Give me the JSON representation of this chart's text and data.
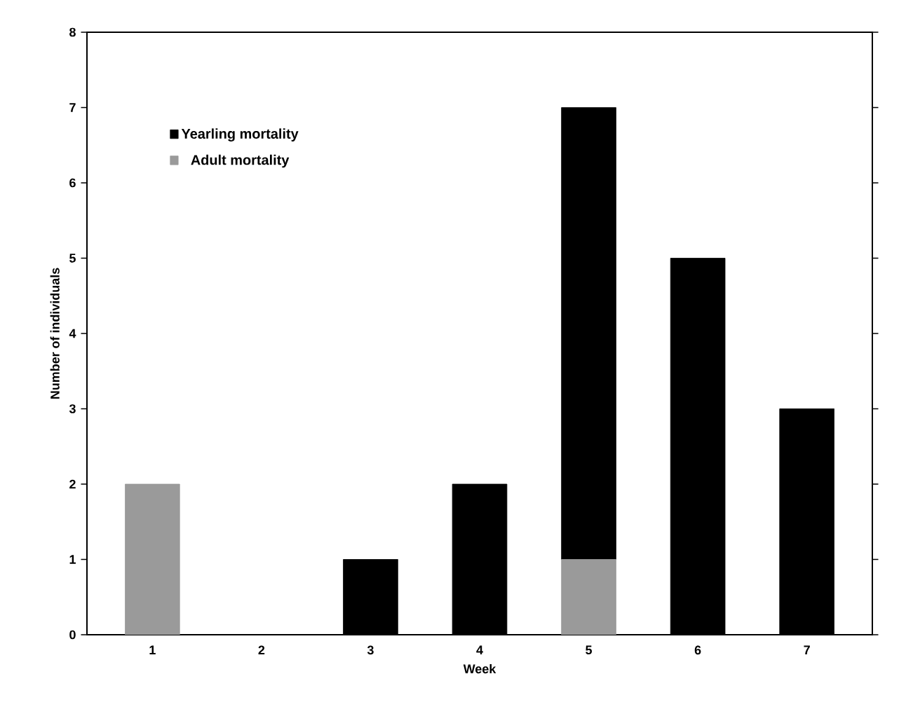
{
  "chart_data": {
    "type": "bar",
    "stacked": true,
    "xlabel": "Week",
    "ylabel": "Number of individuals",
    "categories": [
      "1",
      "2",
      "3",
      "4",
      "5",
      "6",
      "7"
    ],
    "series": [
      {
        "name": "Adult mortality",
        "color": "#9a9a9a",
        "values": [
          2,
          0,
          0,
          0,
          1,
          0,
          0
        ]
      },
      {
        "name": "Yearling mortality",
        "color": "#000000",
        "values": [
          0,
          0,
          1,
          2,
          6,
          5,
          3
        ]
      }
    ],
    "ylim": [
      0,
      8
    ],
    "yticks": [
      0,
      1,
      2,
      3,
      4,
      5,
      6,
      7,
      8
    ],
    "legend": "top left"
  }
}
